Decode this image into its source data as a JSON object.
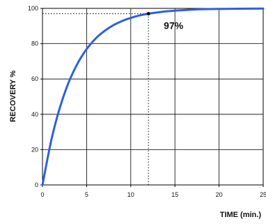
{
  "chart_data": {
    "type": "line",
    "xlabel": "TIME (min.)",
    "ylabel": "RECOVERY %",
    "xlim": [
      0,
      25
    ],
    "ylim": [
      0,
      100
    ],
    "x_ticks": [
      "0",
      "5",
      "10",
      "15",
      "20",
      "25"
    ],
    "y_ticks": [
      "0",
      "20",
      "40",
      "60",
      "80",
      "100"
    ],
    "grid": true,
    "series": [
      {
        "color": "#2f5fe0",
        "x": [
          0,
          1,
          2,
          3,
          4,
          5,
          6,
          7,
          8,
          9,
          10,
          11,
          12,
          13,
          14,
          15,
          16,
          17,
          18,
          20,
          22,
          25
        ],
        "y": [
          0,
          25.4,
          44.3,
          58.5,
          69.0,
          76.9,
          82.8,
          87.1,
          90.4,
          92.8,
          94.6,
          96.0,
          97.0,
          97.7,
          98.3,
          98.7,
          99.0,
          99.3,
          99.5,
          99.7,
          99.8,
          99.9
        ]
      }
    ],
    "annotation": {
      "text": "97%",
      "x": 12,
      "y": 97
    }
  }
}
